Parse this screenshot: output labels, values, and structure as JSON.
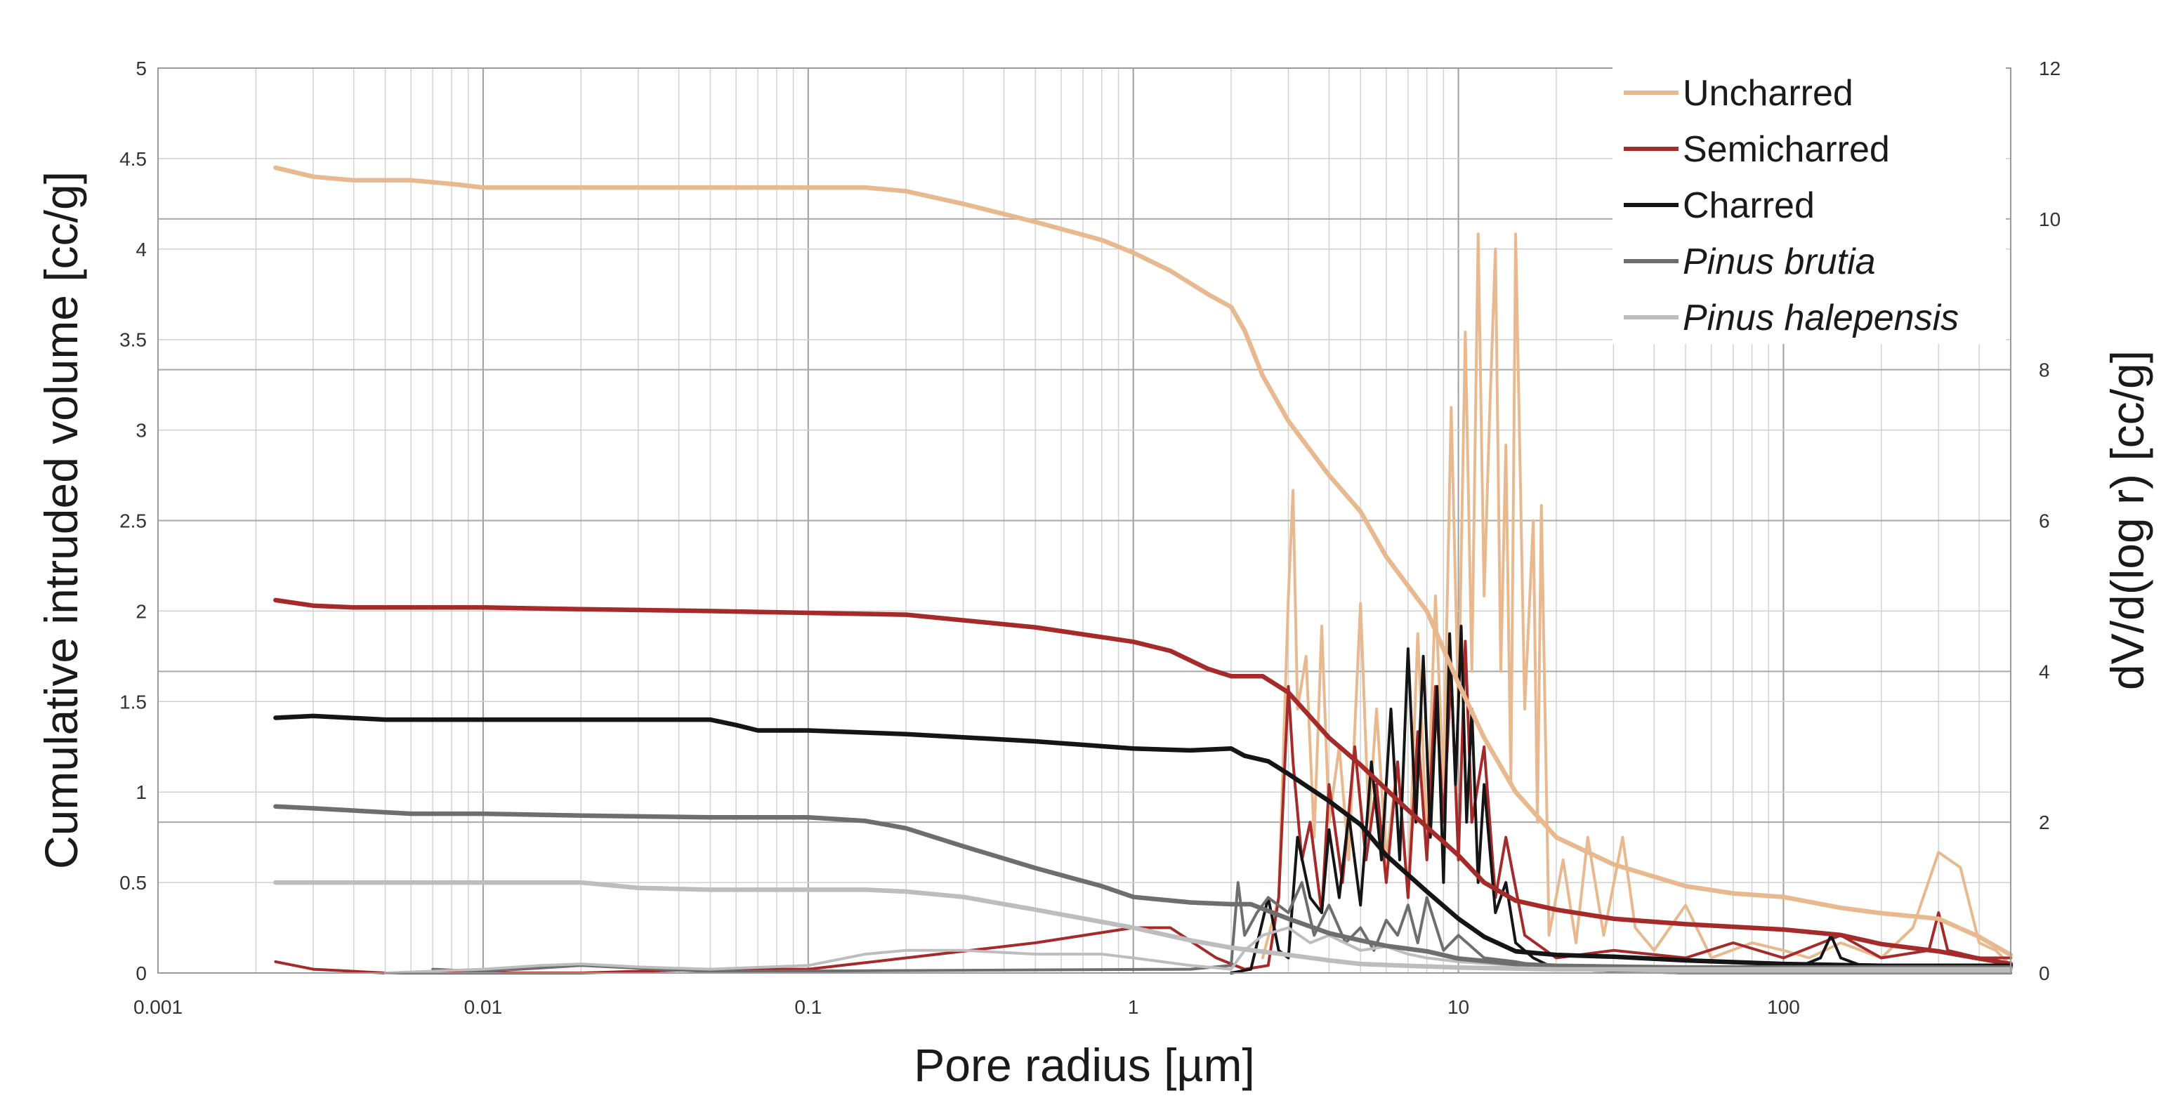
{
  "chart_data": {
    "type": "line",
    "xscale": "log",
    "xlim": [
      0.001,
      500
    ],
    "ylim_left": [
      0,
      5
    ],
    "ylim_right": [
      0,
      12
    ],
    "xlabel": "Pore radius [µm]",
    "ylabel_left": "Cumulative intruded volume [cc/g]",
    "ylabel_right": "dV/d(log r)  [cc/g]",
    "x_ticks": [
      "0.001",
      "0.01",
      "0.1",
      "1",
      "10",
      "100"
    ],
    "y_left_ticks": [
      "0",
      "0.5",
      "1",
      "1.5",
      "2",
      "2.5",
      "3",
      "3.5",
      "4",
      "4.5",
      "5"
    ],
    "y_right_ticks": [
      "0",
      "2",
      "4",
      "6",
      "8",
      "10",
      "12"
    ],
    "grid": true,
    "legend_position": "top-right",
    "legend": [
      {
        "label": "Uncharred",
        "color": "#e8b98f",
        "italic": false
      },
      {
        "label": "Semicharred",
        "color": "#a52a2a",
        "italic": false
      },
      {
        "label": "Charred",
        "color": "#151515",
        "italic": false
      },
      {
        "label": "Pinus brutia",
        "color": "#6e6e6e",
        "italic": true
      },
      {
        "label": "Pinus halepensis",
        "color": "#bdbdbd",
        "italic": true
      }
    ],
    "cumulative_series": [
      {
        "name": "Uncharred",
        "color": "#e8b98f",
        "x": [
          0.0023,
          0.003,
          0.004,
          0.006,
          0.008,
          0.01,
          0.02,
          0.05,
          0.1,
          0.15,
          0.2,
          0.3,
          0.5,
          0.8,
          1,
          1.3,
          1.7,
          2,
          2.2,
          2.5,
          3,
          4,
          5,
          6,
          8,
          10,
          12,
          15,
          20,
          30,
          50,
          70,
          100,
          150,
          200,
          300,
          400,
          500
        ],
        "y": [
          4.45,
          4.4,
          4.38,
          4.38,
          4.36,
          4.34,
          4.34,
          4.34,
          4.34,
          4.34,
          4.32,
          4.25,
          4.15,
          4.05,
          3.98,
          3.88,
          3.75,
          3.68,
          3.55,
          3.3,
          3.05,
          2.75,
          2.55,
          2.3,
          2.0,
          1.6,
          1.3,
          1.0,
          0.75,
          0.6,
          0.48,
          0.44,
          0.42,
          0.36,
          0.33,
          0.3,
          0.2,
          0.1
        ]
      },
      {
        "name": "Semicharred",
        "color": "#a52a2a",
        "x": [
          0.0023,
          0.003,
          0.004,
          0.01,
          0.02,
          0.05,
          0.1,
          0.2,
          0.5,
          1,
          1.3,
          1.7,
          2,
          2.5,
          3,
          4,
          5,
          7,
          10,
          12,
          15,
          20,
          30,
          50,
          100,
          150,
          200,
          300,
          400,
          500
        ],
        "y": [
          2.06,
          2.03,
          2.02,
          2.02,
          2.01,
          2.0,
          1.99,
          1.98,
          1.91,
          1.83,
          1.78,
          1.68,
          1.64,
          1.64,
          1.55,
          1.3,
          1.15,
          0.9,
          0.65,
          0.5,
          0.4,
          0.35,
          0.3,
          0.27,
          0.24,
          0.21,
          0.16,
          0.12,
          0.08,
          0.05
        ]
      },
      {
        "name": "Charred",
        "color": "#151515",
        "x": [
          0.0023,
          0.003,
          0.005,
          0.01,
          0.02,
          0.05,
          0.06,
          0.07,
          0.1,
          0.2,
          0.5,
          1,
          1.5,
          2,
          2.2,
          2.6,
          3,
          4,
          5,
          6,
          8,
          10,
          12,
          15,
          20,
          30,
          50,
          100,
          200,
          500
        ],
        "y": [
          1.41,
          1.42,
          1.4,
          1.4,
          1.4,
          1.4,
          1.37,
          1.34,
          1.34,
          1.32,
          1.28,
          1.24,
          1.23,
          1.24,
          1.2,
          1.17,
          1.1,
          0.95,
          0.82,
          0.65,
          0.45,
          0.3,
          0.2,
          0.12,
          0.1,
          0.09,
          0.07,
          0.05,
          0.04,
          0.04
        ]
      },
      {
        "name": "Pinus brutia",
        "color": "#6e6e6e",
        "x": [
          0.0023,
          0.003,
          0.006,
          0.01,
          0.02,
          0.05,
          0.1,
          0.15,
          0.2,
          0.3,
          0.5,
          0.8,
          1,
          1.5,
          2,
          2.3,
          3,
          4,
          5,
          6,
          8,
          10,
          15,
          20,
          50,
          100,
          500
        ],
        "y": [
          0.92,
          0.91,
          0.88,
          0.88,
          0.87,
          0.86,
          0.86,
          0.84,
          0.8,
          0.7,
          0.58,
          0.48,
          0.42,
          0.39,
          0.38,
          0.38,
          0.3,
          0.22,
          0.18,
          0.15,
          0.12,
          0.08,
          0.05,
          0.04,
          0.03,
          0.03,
          0.03
        ]
      },
      {
        "name": "Pinus halepensis",
        "color": "#bdbdbd",
        "x": [
          0.0023,
          0.005,
          0.01,
          0.02,
          0.03,
          0.05,
          0.1,
          0.15,
          0.2,
          0.3,
          0.5,
          1,
          1.5,
          2,
          3,
          4,
          5,
          7,
          10,
          20,
          50,
          100,
          500
        ],
        "y": [
          0.5,
          0.5,
          0.5,
          0.5,
          0.47,
          0.46,
          0.46,
          0.46,
          0.45,
          0.42,
          0.35,
          0.25,
          0.18,
          0.14,
          0.1,
          0.07,
          0.05,
          0.04,
          0.03,
          0.02,
          0.02,
          0.02,
          0.02
        ]
      }
    ],
    "differential_series": [
      {
        "name": "Uncharred",
        "color": "#e8b98f",
        "x": [
          2.5,
          2.8,
          3.0,
          3.1,
          3.2,
          3.4,
          3.6,
          3.8,
          4.0,
          4.3,
          4.6,
          5.0,
          5.3,
          5.6,
          6.0,
          6.5,
          7.0,
          7.5,
          8.0,
          8.5,
          9.0,
          9.5,
          10.0,
          10.5,
          11.0,
          11.5,
          12.0,
          12.5,
          13.0,
          13.5,
          14.0,
          14.5,
          15.0,
          16.0,
          17.0,
          17.5,
          18.0,
          19.0,
          21.0,
          23.0,
          25.0,
          28.0,
          32.0,
          35.0,
          40.0,
          50.0,
          60.0,
          80.0,
          100.0,
          120.0,
          150.0,
          200.0,
          250.0,
          300.0,
          350.0,
          400.0,
          450.0,
          500.0
        ],
        "y": [
          0.2,
          1.0,
          5.0,
          6.4,
          3.5,
          4.2,
          1.8,
          4.6,
          2.0,
          3.0,
          1.5,
          4.9,
          2.0,
          3.5,
          1.5,
          2.8,
          1.0,
          4.5,
          1.8,
          5.0,
          2.5,
          7.5,
          3.5,
          8.5,
          4.0,
          9.8,
          5.0,
          7.5,
          9.6,
          4.0,
          7.0,
          2.5,
          9.8,
          3.5,
          6.0,
          2.0,
          6.2,
          0.5,
          1.5,
          0.4,
          1.8,
          0.5,
          1.8,
          0.6,
          0.3,
          0.9,
          0.2,
          0.4,
          0.3,
          0.2,
          0.4,
          0.2,
          0.6,
          1.6,
          1.4,
          0.4,
          0.3,
          0.1
        ]
      },
      {
        "name": "Semicharred",
        "color": "#a52a2a",
        "x": [
          0.0023,
          0.003,
          0.005,
          0.01,
          0.02,
          0.05,
          0.1,
          0.2,
          0.5,
          1.0,
          1.3,
          1.8,
          2.2,
          2.6,
          2.8,
          3.0,
          3.1,
          3.3,
          3.5,
          3.8,
          4.0,
          4.4,
          4.8,
          5.2,
          5.6,
          6.0,
          6.5,
          7.0,
          7.5,
          8.0,
          8.5,
          9.0,
          9.5,
          10.0,
          10.5,
          11.0,
          12.0,
          13.0,
          14.0,
          16.0,
          20.0,
          30.0,
          50.0,
          70.0,
          100.0,
          150.0,
          200.0,
          280.0,
          300.0,
          320.0,
          400.0,
          500.0
        ],
        "y": [
          0.15,
          0.05,
          0.0,
          0.0,
          0.0,
          0.05,
          0.05,
          0.2,
          0.4,
          0.6,
          0.6,
          0.2,
          0.05,
          0.1,
          1.0,
          3.8,
          2.8,
          1.5,
          2.0,
          0.8,
          2.5,
          1.2,
          3.0,
          1.5,
          2.5,
          1.2,
          2.8,
          1.0,
          3.2,
          1.5,
          3.8,
          2.0,
          4.0,
          1.5,
          4.4,
          2.0,
          3.0,
          1.0,
          1.8,
          0.5,
          0.2,
          0.3,
          0.2,
          0.4,
          0.2,
          0.5,
          0.2,
          0.3,
          0.8,
          0.3,
          0.2,
          0.2
        ]
      },
      {
        "name": "Charred",
        "color": "#151515",
        "x": [
          2.0,
          2.3,
          2.6,
          2.8,
          3.0,
          3.2,
          3.5,
          3.8,
          4.0,
          4.3,
          4.6,
          5.0,
          5.4,
          5.8,
          6.2,
          6.6,
          7.0,
          7.4,
          7.8,
          8.2,
          8.6,
          9.0,
          9.4,
          9.8,
          10.2,
          10.6,
          11.0,
          11.5,
          12.0,
          13.0,
          14.0,
          15.0,
          17.0,
          20.0,
          50.0,
          100.0,
          130.0,
          140.0,
          150.0,
          200.0,
          500.0
        ],
        "y": [
          0.0,
          0.05,
          1.0,
          0.3,
          0.2,
          1.8,
          1.0,
          0.8,
          1.9,
          1.0,
          2.1,
          0.9,
          2.8,
          1.5,
          3.5,
          1.5,
          4.3,
          2.0,
          4.2,
          1.8,
          3.8,
          1.2,
          4.5,
          2.5,
          4.6,
          2.0,
          3.5,
          1.2,
          2.5,
          0.8,
          1.2,
          0.4,
          0.2,
          0.05,
          0.0,
          0.0,
          0.2,
          0.5,
          0.2,
          0.0,
          0.0
        ]
      },
      {
        "name": "Pinus brutia",
        "color": "#6e6e6e",
        "x": [
          0.007,
          0.01,
          0.02,
          0.05,
          1.5,
          2.0,
          2.1,
          2.2,
          2.4,
          2.6,
          3.0,
          3.3,
          3.6,
          4.0,
          4.5,
          5.0,
          5.5,
          6.0,
          6.5,
          7.0,
          7.5,
          8.0,
          9.0,
          10.0,
          12.0,
          15.0,
          20.0,
          50.0,
          500.0
        ],
        "y": [
          0.05,
          0.02,
          0.1,
          0.02,
          0.05,
          0.1,
          1.2,
          0.5,
          0.8,
          1.0,
          0.8,
          1.2,
          0.5,
          0.9,
          0.4,
          0.6,
          0.3,
          0.7,
          0.5,
          0.9,
          0.4,
          1.0,
          0.3,
          0.5,
          0.2,
          0.15,
          0.05,
          0.0,
          0.0
        ]
      },
      {
        "name": "Pinus halepensis",
        "color": "#bdbdbd",
        "x": [
          0.005,
          0.01,
          0.015,
          0.02,
          0.03,
          0.05,
          0.1,
          0.15,
          0.2,
          0.3,
          0.5,
          0.8,
          1.0,
          1.5,
          2.0,
          2.2,
          2.5,
          3.0,
          3.5,
          4.0,
          5.0,
          6.0,
          7.0,
          8.0,
          10.0,
          15.0,
          20.0,
          50.0,
          500.0
        ],
        "y": [
          0.0,
          0.05,
          0.1,
          0.12,
          0.08,
          0.05,
          0.1,
          0.25,
          0.3,
          0.3,
          0.25,
          0.25,
          0.2,
          0.1,
          0.05,
          0.3,
          0.5,
          0.6,
          0.4,
          0.5,
          0.3,
          0.35,
          0.25,
          0.2,
          0.15,
          0.1,
          0.05,
          0.02,
          0.02
        ]
      }
    ]
  }
}
